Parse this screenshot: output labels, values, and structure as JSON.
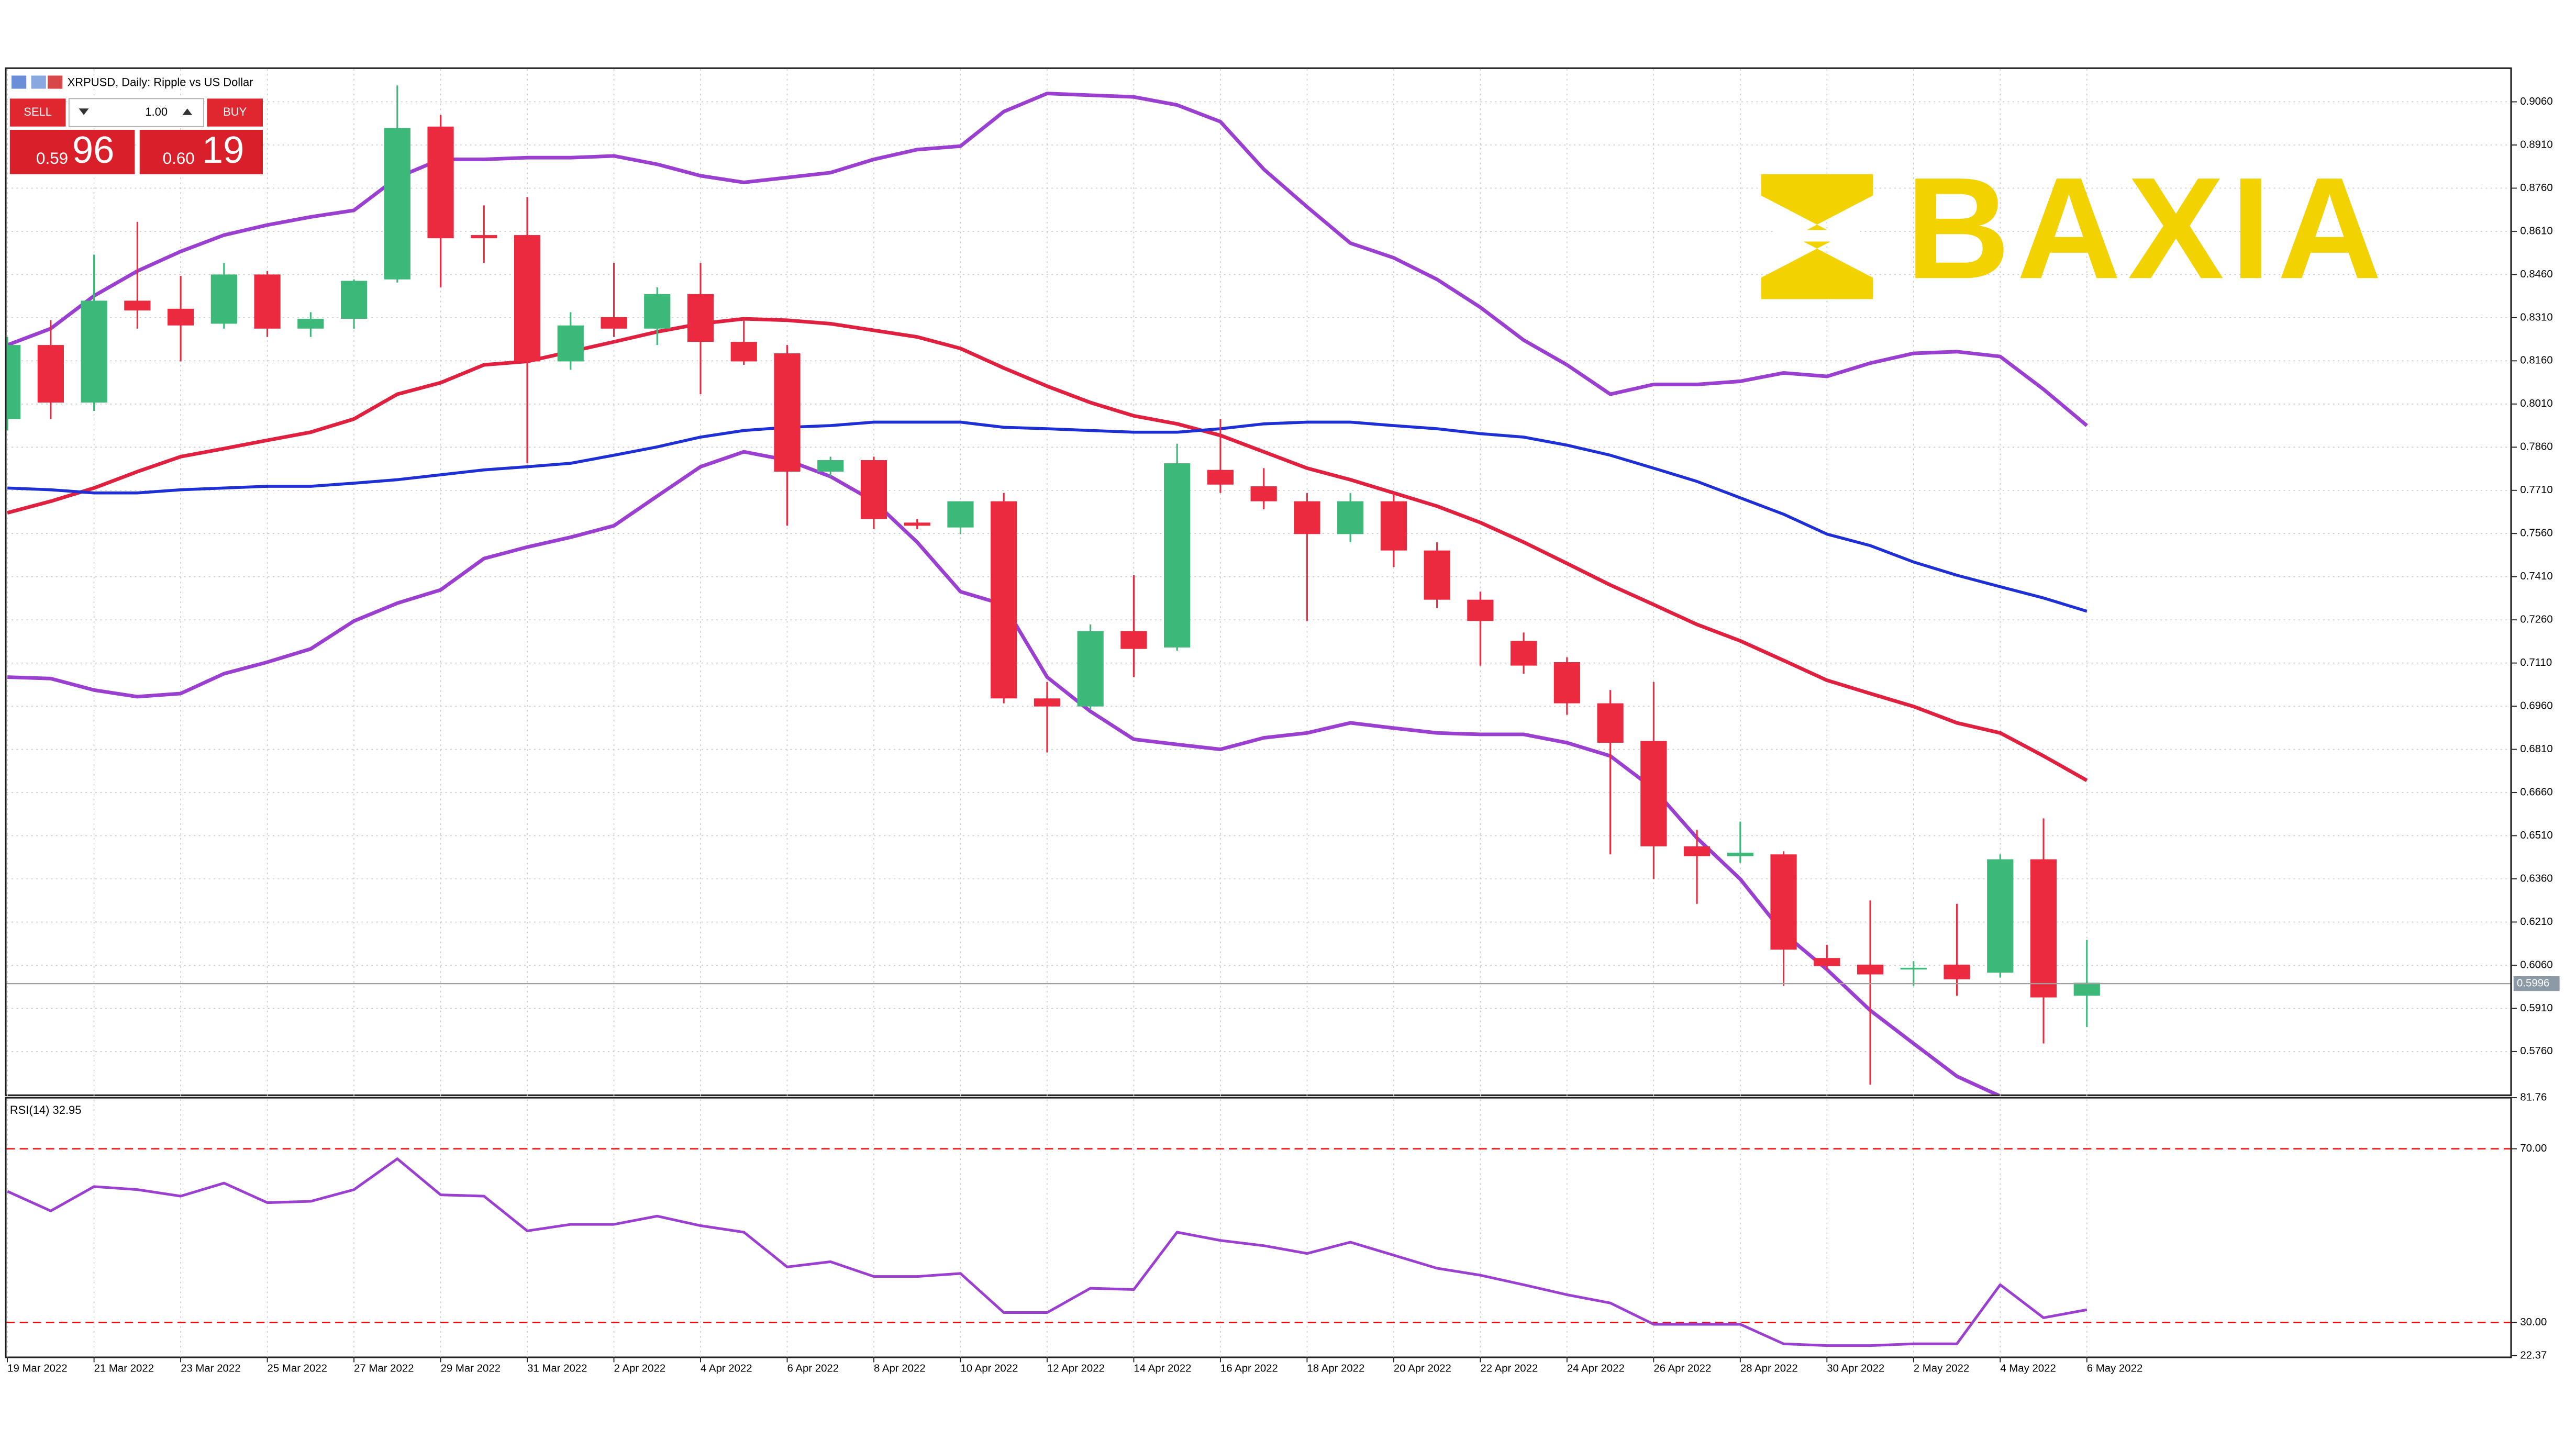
{
  "header": "XRPUSD, Daily: Ripple vs US Dollar",
  "trade_panel": {
    "sell": "SELL",
    "buy": "BUY",
    "volume": "1.00",
    "bid": {
      "small": "0.59",
      "big": "96"
    },
    "ask": {
      "small": "0.60",
      "big": "19"
    }
  },
  "logo": "BAXIA",
  "chart_data": [
    {
      "type": "candlestick",
      "categories": [
        "19 Mar 2022",
        null,
        "21 Mar 2022",
        null,
        "23 Mar 2022",
        null,
        "25 Mar 2022",
        null,
        "27 Mar 2022",
        null,
        "29 Mar 2022",
        null,
        "31 Mar 2022",
        null,
        "2 Apr 2022",
        null,
        "4 Apr 2022",
        null,
        "6 Apr 2022",
        null,
        "8 Apr 2022",
        null,
        "10 Apr 2022",
        null,
        "12 Apr 2022",
        null,
        "14 Apr 2022",
        null,
        "16 Apr 2022",
        null,
        "18 Apr 2022",
        null,
        "20 Apr 2022",
        null,
        "22 Apr 2022",
        null,
        "24 Apr 2022",
        null,
        "26 Apr 2022",
        null,
        "28 Apr 2022",
        null,
        "30 Apr 2022",
        null,
        "2 May 2022",
        null,
        "4 May 2022",
        null,
        "6 May 2022"
      ],
      "open": [
        0.7958,
        0.8215,
        0.8015,
        0.8369,
        0.8341,
        0.8289,
        0.846,
        0.8272,
        0.8306,
        0.8443,
        0.8974,
        0.8597,
        0.8597,
        0.8158,
        0.8312,
        0.8272,
        0.8392,
        0.8226,
        0.8186,
        0.7775,
        0.7815,
        0.7598,
        0.7581,
        0.7672,
        0.6987,
        0.6959,
        0.7221,
        0.7164,
        0.7781,
        0.7724,
        0.7672,
        0.7558,
        0.7672,
        0.7501,
        0.733,
        0.7187,
        0.7113,
        0.697,
        0.6839,
        0.6473,
        0.6439,
        0.6445,
        0.6085,
        0.6062,
        0.6045,
        0.6062,
        0.6034,
        0.6428,
        0.5954
      ],
      "high": [
        0.8243,
        0.8301,
        0.8529,
        0.8643,
        0.8455,
        0.85,
        0.8472,
        0.8329,
        0.8443,
        0.9117,
        0.9014,
        0.87,
        0.8729,
        0.8329,
        0.85,
        0.8415,
        0.85,
        0.8301,
        0.8215,
        0.7827,
        0.7827,
        0.761,
        0.7672,
        0.7701,
        0.7044,
        0.7244,
        0.7415,
        0.7872,
        0.7958,
        0.7787,
        0.7701,
        0.7701,
        0.7701,
        0.753,
        0.7358,
        0.7216,
        0.713,
        0.7016,
        0.7044,
        0.653,
        0.6559,
        0.6456,
        0.6131,
        0.6285,
        0.6074,
        0.6273,
        0.6445,
        0.657,
        0.6148
      ],
      "low": [
        0.7918,
        0.7958,
        0.7986,
        0.8272,
        0.8158,
        0.8272,
        0.8243,
        0.8243,
        0.8272,
        0.8432,
        0.8415,
        0.85,
        0.7804,
        0.8129,
        0.8243,
        0.8215,
        0.8044,
        0.8146,
        0.7587,
        0.7758,
        0.7575,
        0.7575,
        0.7558,
        0.697,
        0.6799,
        0.6947,
        0.7061,
        0.7153,
        0.7701,
        0.7644,
        0.7256,
        0.753,
        0.7444,
        0.7301,
        0.7101,
        0.7073,
        0.693,
        0.6445,
        0.6359,
        0.6273,
        0.6416,
        0.5988,
        0.6045,
        0.5645,
        0.5988,
        0.5954,
        0.6017,
        0.5788,
        0.5845
      ],
      "close": [
        0.8215,
        0.8015,
        0.8369,
        0.8335,
        0.8283,
        0.846,
        0.8272,
        0.8306,
        0.8438,
        0.8969,
        0.8586,
        0.8586,
        0.8158,
        0.8283,
        0.8272,
        0.8392,
        0.8226,
        0.8158,
        0.7775,
        0.7815,
        0.761,
        0.7587,
        0.7672,
        0.6987,
        0.6959,
        0.7221,
        0.7159,
        0.7804,
        0.773,
        0.7672,
        0.7558,
        0.7672,
        0.7501,
        0.733,
        0.7256,
        0.7101,
        0.697,
        0.6833,
        0.6473,
        0.6439,
        0.6451,
        0.6114,
        0.6057,
        0.6028,
        0.6051,
        0.6011,
        0.6428,
        0.5948,
        0.5999
      ],
      "up_color": "#3cb878",
      "down_color": "#eb2a40",
      "last_price": 0.5996,
      "series": [
        {
          "color": "#9b3fd1",
          "values": [
            0.8215,
            0.8272,
            0.8386,
            0.8472,
            0.854,
            0.8597,
            0.8632,
            0.866,
            0.8683,
            0.8797,
            0.886,
            0.886,
            0.8866,
            0.8866,
            0.8872,
            0.8843,
            0.8803,
            0.878,
            0.8797,
            0.8814,
            0.886,
            0.8894,
            0.8906,
            0.9026,
            0.9089,
            0.9083,
            0.9077,
            0.9049,
            0.8991,
            0.8826,
            0.8695,
            0.8569,
            0.8518,
            0.8443,
            0.8346,
            0.8232,
            0.8146,
            0.8044,
            0.8078,
            0.8078,
            0.8089,
            0.8118,
            0.8106,
            0.8152,
            0.8186,
            0.8192,
            0.8175,
            0.8061,
            0.7935
          ]
        },
        {
          "color": "#9b3fd1",
          "values": [
            0.7061,
            0.7056,
            0.7016,
            0.6993,
            0.7004,
            0.7073,
            0.7113,
            0.7159,
            0.7256,
            0.7318,
            0.7364,
            0.7473,
            0.7513,
            0.7547,
            0.7587,
            0.769,
            0.7792,
            0.7844,
            0.7815,
            0.7758,
            0.7672,
            0.753,
            0.7358,
            0.7313,
            0.7061,
            0.6942,
            0.6845,
            0.6827,
            0.681,
            0.685,
            0.6867,
            0.6902,
            0.6884,
            0.6867,
            0.6862,
            0.6862,
            0.6833,
            0.6787,
            0.6673,
            0.6502,
            0.6359,
            0.6171,
            0.6045,
            0.5903,
            0.5788,
            0.5674,
            0.5605,
            null,
            null
          ]
        },
        {
          "color": "#e0203f",
          "values": [
            0.7632,
            0.7672,
            0.7718,
            0.7775,
            0.7827,
            0.7855,
            0.7884,
            0.7912,
            0.7958,
            0.8044,
            0.8084,
            0.8146,
            0.8158,
            0.8192,
            0.8226,
            0.8261,
            0.8289,
            0.8306,
            0.8301,
            0.8289,
            0.8266,
            0.8243,
            0.8203,
            0.8135,
            0.8072,
            0.8015,
            0.7969,
            0.7941,
            0.7901,
            0.7844,
            0.7787,
            0.7747,
            0.7701,
            0.7655,
            0.7598,
            0.753,
            0.7456,
            0.7381,
            0.7313,
            0.7244,
            0.7187,
            0.7119,
            0.705,
            0.7004,
            0.6959,
            0.6902,
            0.6867,
            0.6787,
            0.6702
          ]
        },
        {
          "color": "#1f2fd6",
          "values": [
            0.7718,
            0.7712,
            0.7701,
            0.7701,
            0.7712,
            0.7718,
            0.7724,
            0.7724,
            0.7735,
            0.7747,
            0.7764,
            0.7781,
            0.7792,
            0.7804,
            0.7832,
            0.7861,
            0.7895,
            0.7918,
            0.7929,
            0.7935,
            0.7947,
            0.7947,
            0.7947,
            0.7929,
            0.7924,
            0.7918,
            0.7912,
            0.7912,
            0.7924,
            0.7941,
            0.7947,
            0.7947,
            0.7935,
            0.7924,
            0.7907,
            0.7895,
            0.7867,
            0.7832,
            0.7787,
            0.7741,
            0.7684,
            0.7627,
            0.7558,
            0.7518,
            0.7461,
            0.7415,
            0.7375,
            0.7336,
            0.729
          ]
        }
      ],
      "ylim": [
        0.5611,
        0.9174
      ],
      "yticks": [
        {
          "value": 0.906,
          "label": "0.9060"
        },
        {
          "value": 0.891,
          "label": "0.8910"
        },
        {
          "value": 0.876,
          "label": "0.8760"
        },
        {
          "value": 0.861,
          "label": "0.8610"
        },
        {
          "value": 0.846,
          "label": "0.8460"
        },
        {
          "value": 0.831,
          "label": "0.8310"
        },
        {
          "value": 0.816,
          "label": "0.8160"
        },
        {
          "value": 0.801,
          "label": "0.8010"
        },
        {
          "value": 0.786,
          "label": "0.7860"
        },
        {
          "value": 0.771,
          "label": "0.7710"
        },
        {
          "value": 0.756,
          "label": "0.7560"
        },
        {
          "value": 0.741,
          "label": "0.7410"
        },
        {
          "value": 0.726,
          "label": "0.7260"
        },
        {
          "value": 0.711,
          "label": "0.7110"
        },
        {
          "value": 0.696,
          "label": "0.6960"
        },
        {
          "value": 0.681,
          "label": "0.6810"
        },
        {
          "value": 0.666,
          "label": "0.6660"
        },
        {
          "value": 0.651,
          "label": "0.6510"
        },
        {
          "value": 0.636,
          "label": "0.6360"
        },
        {
          "value": 0.621,
          "label": "0.6210"
        },
        {
          "value": 0.606,
          "label": "0.6060"
        },
        {
          "value": 0.591,
          "label": "0.5910"
        },
        {
          "value": 0.576,
          "label": "0.5760"
        }
      ],
      "grid": true
    },
    {
      "type": "line",
      "title": "RSI(14) 32.95",
      "series": [
        {
          "color": "#9b3fd1",
          "values": [
            60.2,
            55.7,
            61.3,
            60.6,
            59.1,
            62.1,
            57.6,
            57.9,
            60.6,
            67.7,
            59.4,
            59.1,
            51.1,
            52.6,
            52.6,
            54.5,
            52.3,
            50.8,
            42.8,
            44.0,
            40.6,
            40.6,
            41.3,
            32.3,
            32.3,
            37.9,
            37.6,
            50.8,
            48.9,
            47.7,
            45.9,
            48.5,
            45.5,
            42.5,
            40.9,
            38.7,
            36.4,
            34.5,
            29.6,
            29.6,
            29.6,
            25.1,
            24.7,
            24.7,
            25.1,
            25.1,
            38.7,
            31.1,
            32.95
          ]
        }
      ],
      "levels": [
        70,
        30
      ],
      "level_color": "#ff0000",
      "ylim": [
        22.37,
        81.76
      ],
      "yticks": [
        81.76,
        {
          "value": 70,
          "label": "70.00"
        },
        {
          "value": 30,
          "label": "30.00"
        },
        22.37
      ]
    }
  ]
}
